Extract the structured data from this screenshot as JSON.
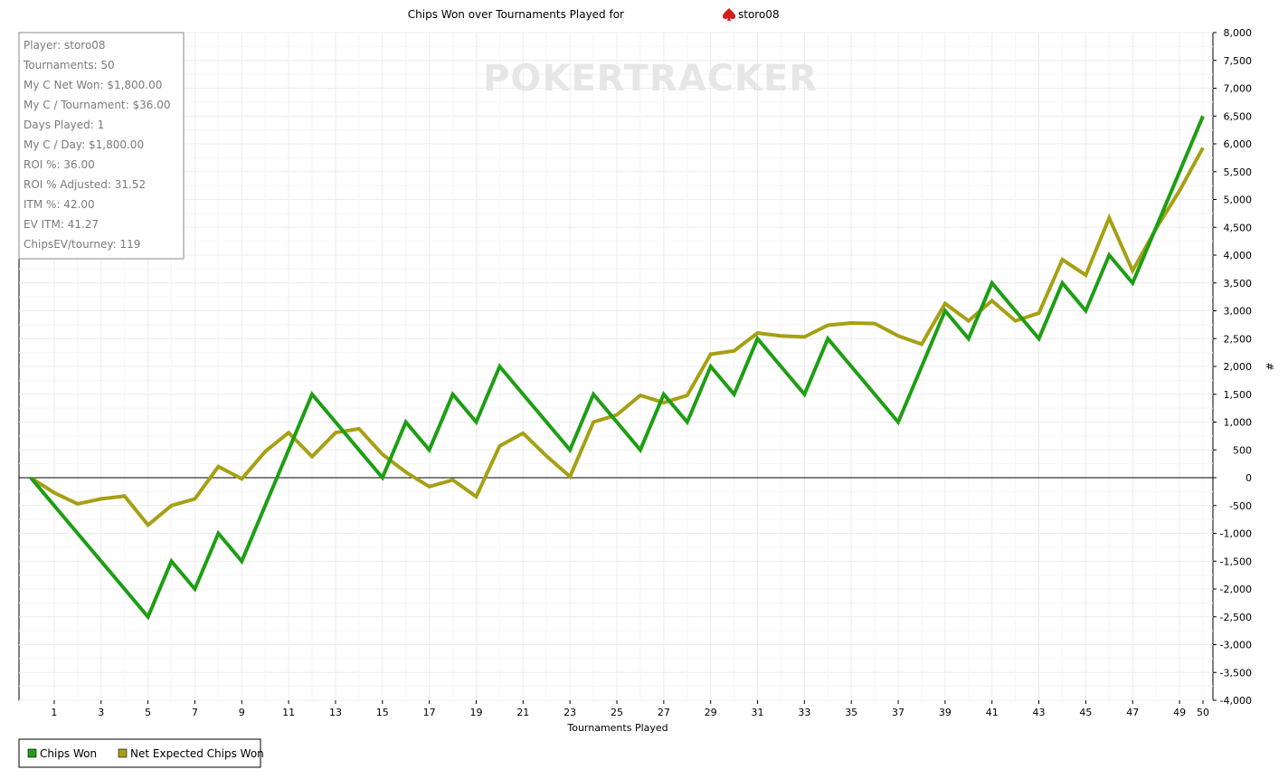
{
  "window_title": "Chips Won over Tournaments Played for",
  "player_name": "storo08",
  "watermark": "POKERTRACKER",
  "stats_panel": {
    "lines": [
      "Player: storo08",
      "Tournaments: 50",
      "My C Net Won: $1,800.00",
      "My C / Tournament: $36.00",
      "Days Played: 1",
      "My C / Day: $1,800.00",
      "ROI %: 36.00",
      "ROI % Adjusted: 31.52",
      "ITM %: 42.00",
      "EV ITM: 41.27",
      "ChipsEV/tourney: 119"
    ]
  },
  "legend": {
    "items": [
      {
        "label": "Chips Won",
        "color": "#1e9e14"
      },
      {
        "label": "Net Expected Chips Won",
        "color": "#a6a014"
      }
    ]
  },
  "chart_data": {
    "type": "line",
    "title": "Chips Won over Tournaments Played for storo08",
    "xlabel": "Tournaments Played",
    "ylabel": "#",
    "xlim": [
      0,
      50
    ],
    "ylim": [
      -4000,
      8000
    ],
    "x_ticks": [
      1,
      3,
      5,
      7,
      9,
      11,
      13,
      15,
      17,
      19,
      21,
      23,
      25,
      27,
      29,
      31,
      33,
      35,
      37,
      39,
      41,
      43,
      45,
      47,
      49,
      50
    ],
    "y_ticks": [
      -4000,
      -3500,
      -3000,
      -2500,
      -2000,
      -1500,
      -1000,
      -500,
      0,
      500,
      1000,
      1500,
      2000,
      2500,
      3000,
      3500,
      4000,
      4500,
      5000,
      5500,
      6000,
      6500,
      7000,
      7500,
      8000
    ],
    "y_tick_labels": [
      "-4,000",
      "-3,500",
      "-3,000",
      "-2,500",
      "-2,000",
      "-1,500",
      "-1,000",
      "-500",
      "0",
      "500",
      "1,000",
      "1,500",
      "2,000",
      "2,500",
      "3,000",
      "3,500",
      "4,000",
      "4,500",
      "5,000",
      "5,500",
      "6,000",
      "6,500",
      "7,000",
      "7,500",
      "8,000"
    ],
    "grid": true,
    "legend_position": "bottom-left",
    "x": [
      0,
      1,
      2,
      3,
      4,
      5,
      6,
      7,
      8,
      9,
      10,
      11,
      12,
      13,
      14,
      15,
      16,
      17,
      18,
      19,
      20,
      21,
      22,
      23,
      24,
      25,
      26,
      27,
      28,
      29,
      30,
      31,
      32,
      33,
      34,
      35,
      36,
      37,
      38,
      39,
      40,
      41,
      42,
      43,
      44,
      45,
      46,
      47,
      48,
      49,
      50
    ],
    "series": [
      {
        "name": "Chips Won",
        "color": "#1e9e14",
        "values": [
          0,
          -500,
          -1000,
          -1500,
          -2000,
          -2500,
          -1500,
          -2000,
          -1000,
          -1500,
          -500,
          500,
          1500,
          1000,
          500,
          0,
          1000,
          500,
          1500,
          1000,
          2000,
          1500,
          1000,
          500,
          1500,
          1000,
          500,
          1500,
          1000,
          2000,
          1500,
          2500,
          2000,
          1500,
          2500,
          2000,
          1500,
          1000,
          2000,
          3000,
          2500,
          3500,
          3000,
          2500,
          3500,
          3000,
          4000,
          3500,
          4500,
          5500,
          6500
        ]
      },
      {
        "name": "Net Expected Chips Won",
        "color": "#a6a014",
        "values": [
          0,
          -270,
          -470,
          -380,
          -330,
          -850,
          -500,
          -380,
          200,
          -20,
          470,
          810,
          380,
          810,
          880,
          420,
          100,
          -160,
          -40,
          -340,
          570,
          800,
          390,
          20,
          1000,
          1130,
          1480,
          1350,
          1480,
          2220,
          2280,
          2600,
          2550,
          2530,
          2740,
          2780,
          2770,
          2550,
          2400,
          3130,
          2820,
          3180,
          2820,
          2960,
          3920,
          3640,
          4670,
          3720,
          4480,
          5160,
          5930
        ]
      }
    ]
  }
}
